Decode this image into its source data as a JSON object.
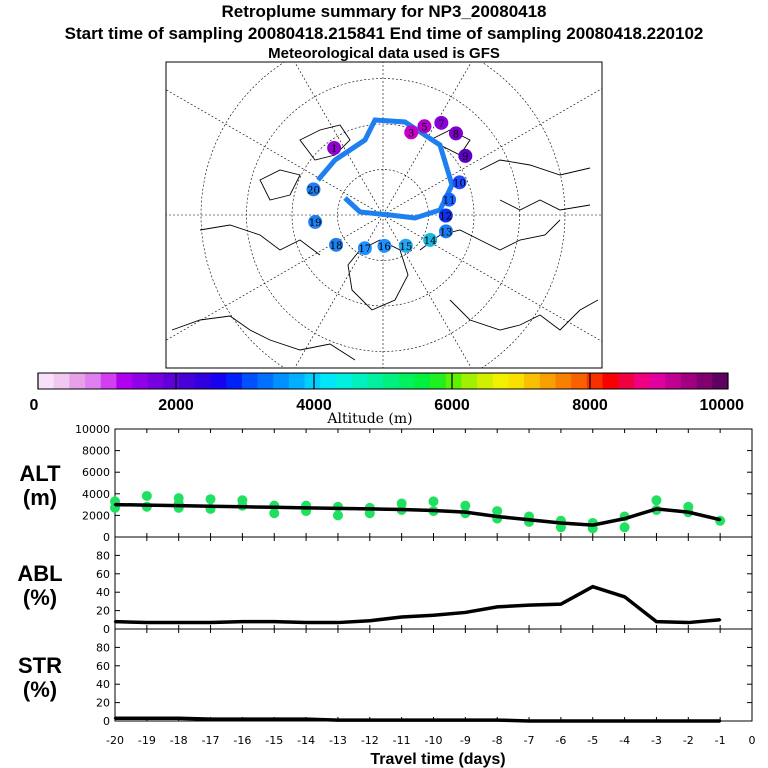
{
  "header": {
    "title": "Retroplume summary for NP3_20080418",
    "sampling": "Start time of sampling 20080418.215841     End time of sampling 20080418.220102",
    "met": "Meteorological data used is GFS"
  },
  "map": {
    "description": "Polar stereographic map",
    "day_labels": [
      {
        "t": "7",
        "a": 0.52,
        "r": 0.86,
        "color": "#8a00d8"
      },
      {
        "t": "8",
        "a": 0.68,
        "r": 0.85,
        "color": "#7a00c8"
      },
      {
        "t": "9",
        "a": 0.9,
        "r": 0.77,
        "color": "#5b00c4"
      },
      {
        "t": "10",
        "a": 1.13,
        "r": 0.62,
        "color": "#1f4bff"
      },
      {
        "t": "11",
        "a": 1.32,
        "r": 0.5,
        "color": "#1568ff"
      },
      {
        "t": "12",
        "a": 1.58,
        "r": 0.46,
        "color": "#0f2fe8"
      },
      {
        "t": "13",
        "a": 1.85,
        "r": 0.48,
        "color": "#1a7cf0"
      },
      {
        "t": "14",
        "a": 2.1,
        "r": 0.4,
        "color": "#1bb7e0"
      },
      {
        "t": "15",
        "a": 2.55,
        "r": 0.3,
        "color": "#23a8f0"
      },
      {
        "t": "16",
        "a": 3.1,
        "r": 0.25,
        "color": "#1e90ff"
      },
      {
        "t": "17",
        "a": 3.6,
        "r": 0.3,
        "color": "#1e90ff"
      },
      {
        "t": "18",
        "a": 4.1,
        "r": 0.42,
        "color": "#1e7ff0"
      },
      {
        "t": "19",
        "a": 4.6,
        "r": 0.5,
        "color": "#1e7ff0"
      },
      {
        "t": "20",
        "a": 5.1,
        "r": 0.55,
        "color": "#1e7ff0"
      },
      {
        "t": "5",
        "a": 0.4,
        "r": 0.78,
        "color": "#b000c8"
      },
      {
        "t": "3",
        "a": 0.3,
        "r": 0.7,
        "color": "#c800c8"
      },
      {
        "t": "1",
        "a": 5.7,
        "r": 0.65,
        "color": "#9000d0"
      }
    ]
  },
  "colorbar": {
    "ticks": [
      "0",
      "2000",
      "4000",
      "6000",
      "8000",
      "10000"
    ],
    "label": "Altitude (m)",
    "colors": [
      "#f8e0f8",
      "#f0c8f0",
      "#e8a0e8",
      "#e080f0",
      "#d040f0",
      "#b000f0",
      "#9000e8",
      "#7800e0",
      "#6000d8",
      "#4800d8",
      "#3000e0",
      "#1800f0",
      "#0020f8",
      "#0050ff",
      "#0070ff",
      "#0090ff",
      "#00b0ff",
      "#00d0ff",
      "#00e8f8",
      "#00f0e0",
      "#00f0c0",
      "#00f0a0",
      "#00f080",
      "#00f060",
      "#00f040",
      "#20f020",
      "#60f000",
      "#a0f000",
      "#d0f000",
      "#f0f000",
      "#f8e000",
      "#f8c000",
      "#f8a000",
      "#f88000",
      "#f86000",
      "#f83000",
      "#f80000",
      "#f00040",
      "#f00080",
      "#e000a0",
      "#c00090",
      "#a00080",
      "#800070",
      "#600060"
    ]
  },
  "chart_data": [
    {
      "type": "line",
      "name": "ALT",
      "ylabel_line1": "ALT",
      "ylabel_line2": "(m)",
      "ylim": [
        0,
        10000
      ],
      "yticks": [
        "0",
        "2000",
        "4000",
        "6000",
        "8000",
        "10000"
      ],
      "x": [
        -20,
        -19,
        -18,
        -17,
        -16,
        -15,
        -14,
        -13,
        -12,
        -11,
        -10,
        -9,
        -8,
        -7,
        -6,
        -5,
        -4,
        -3,
        -2,
        -1
      ],
      "values": [
        3000,
        2950,
        2900,
        2850,
        2800,
        2750,
        2700,
        2650,
        2600,
        2550,
        2450,
        2300,
        1900,
        1600,
        1300,
        1100,
        1700,
        2600,
        2300,
        1600
      ],
      "scatter_color": "#20e060",
      "scatter": [
        {
          "x": -20,
          "y": 2700
        },
        {
          "x": -20,
          "y": 3300
        },
        {
          "x": -19,
          "y": 2800
        },
        {
          "x": -19,
          "y": 3800
        },
        {
          "x": -18,
          "y": 2700
        },
        {
          "x": -18,
          "y": 3600
        },
        {
          "x": -18,
          "y": 3100
        },
        {
          "x": -17,
          "y": 2600
        },
        {
          "x": -17,
          "y": 3500
        },
        {
          "x": -16,
          "y": 2900
        },
        {
          "x": -16,
          "y": 3400
        },
        {
          "x": -15,
          "y": 2900
        },
        {
          "x": -15,
          "y": 2200
        },
        {
          "x": -14,
          "y": 2900
        },
        {
          "x": -14,
          "y": 2400
        },
        {
          "x": -13,
          "y": 2800
        },
        {
          "x": -13,
          "y": 2000
        },
        {
          "x": -12,
          "y": 2700
        },
        {
          "x": -12,
          "y": 2200
        },
        {
          "x": -11,
          "y": 2500
        },
        {
          "x": -11,
          "y": 3100
        },
        {
          "x": -10,
          "y": 2400
        },
        {
          "x": -10,
          "y": 3300
        },
        {
          "x": -9,
          "y": 2200
        },
        {
          "x": -9,
          "y": 2900
        },
        {
          "x": -8,
          "y": 1700
        },
        {
          "x": -8,
          "y": 2400
        },
        {
          "x": -7,
          "y": 1400
        },
        {
          "x": -7,
          "y": 1900
        },
        {
          "x": -6,
          "y": 900
        },
        {
          "x": -6,
          "y": 1500
        },
        {
          "x": -5,
          "y": 800
        },
        {
          "x": -5,
          "y": 1300
        },
        {
          "x": -4,
          "y": 1900
        },
        {
          "x": -4,
          "y": 900
        },
        {
          "x": -3,
          "y": 3400
        },
        {
          "x": -3,
          "y": 2500
        },
        {
          "x": -2,
          "y": 2800
        },
        {
          "x": -2,
          "y": 2300
        },
        {
          "x": -1,
          "y": 1500
        }
      ]
    },
    {
      "type": "line",
      "name": "ABL",
      "ylabel_line1": "ABL",
      "ylabel_line2": "(%)",
      "ylim": [
        0,
        100
      ],
      "yticks": [
        "0",
        "20",
        "40",
        "60",
        "80"
      ],
      "x": [
        -20,
        -19,
        -18,
        -17,
        -16,
        -15,
        -14,
        -13,
        -12,
        -11,
        -10,
        -9,
        -8,
        -7,
        -6,
        -5,
        -4,
        -3,
        -2,
        -1
      ],
      "values": [
        8,
        7,
        7,
        7,
        8,
        8,
        7,
        7,
        9,
        13,
        15,
        18,
        24,
        26,
        27,
        46,
        35,
        8,
        7,
        10
      ]
    },
    {
      "type": "line",
      "name": "STR",
      "ylabel_line1": "STR",
      "ylabel_line2": "(%)",
      "ylim": [
        0,
        100
      ],
      "yticks": [
        "0",
        "20",
        "40",
        "60",
        "80"
      ],
      "x": [
        -20,
        -19,
        -18,
        -17,
        -16,
        -15,
        -14,
        -13,
        -12,
        -11,
        -10,
        -9,
        -8,
        -7,
        -6,
        -5,
        -4,
        -3,
        -2,
        -1
      ],
      "values": [
        3,
        3,
        3,
        2,
        2,
        2,
        2,
        1,
        1,
        1,
        1,
        1,
        1,
        0,
        0,
        0,
        0,
        0,
        0,
        0
      ]
    }
  ],
  "xaxis": {
    "label": "Travel time (days)",
    "ticks": [
      "-20",
      "-19",
      "-18",
      "-17",
      "-16",
      "-15",
      "-14",
      "-13",
      "-12",
      "-11",
      "-10",
      "-9",
      "-8",
      "-7",
      "-6",
      "-5",
      "-4",
      "-3",
      "-2",
      "-1",
      "0"
    ]
  }
}
